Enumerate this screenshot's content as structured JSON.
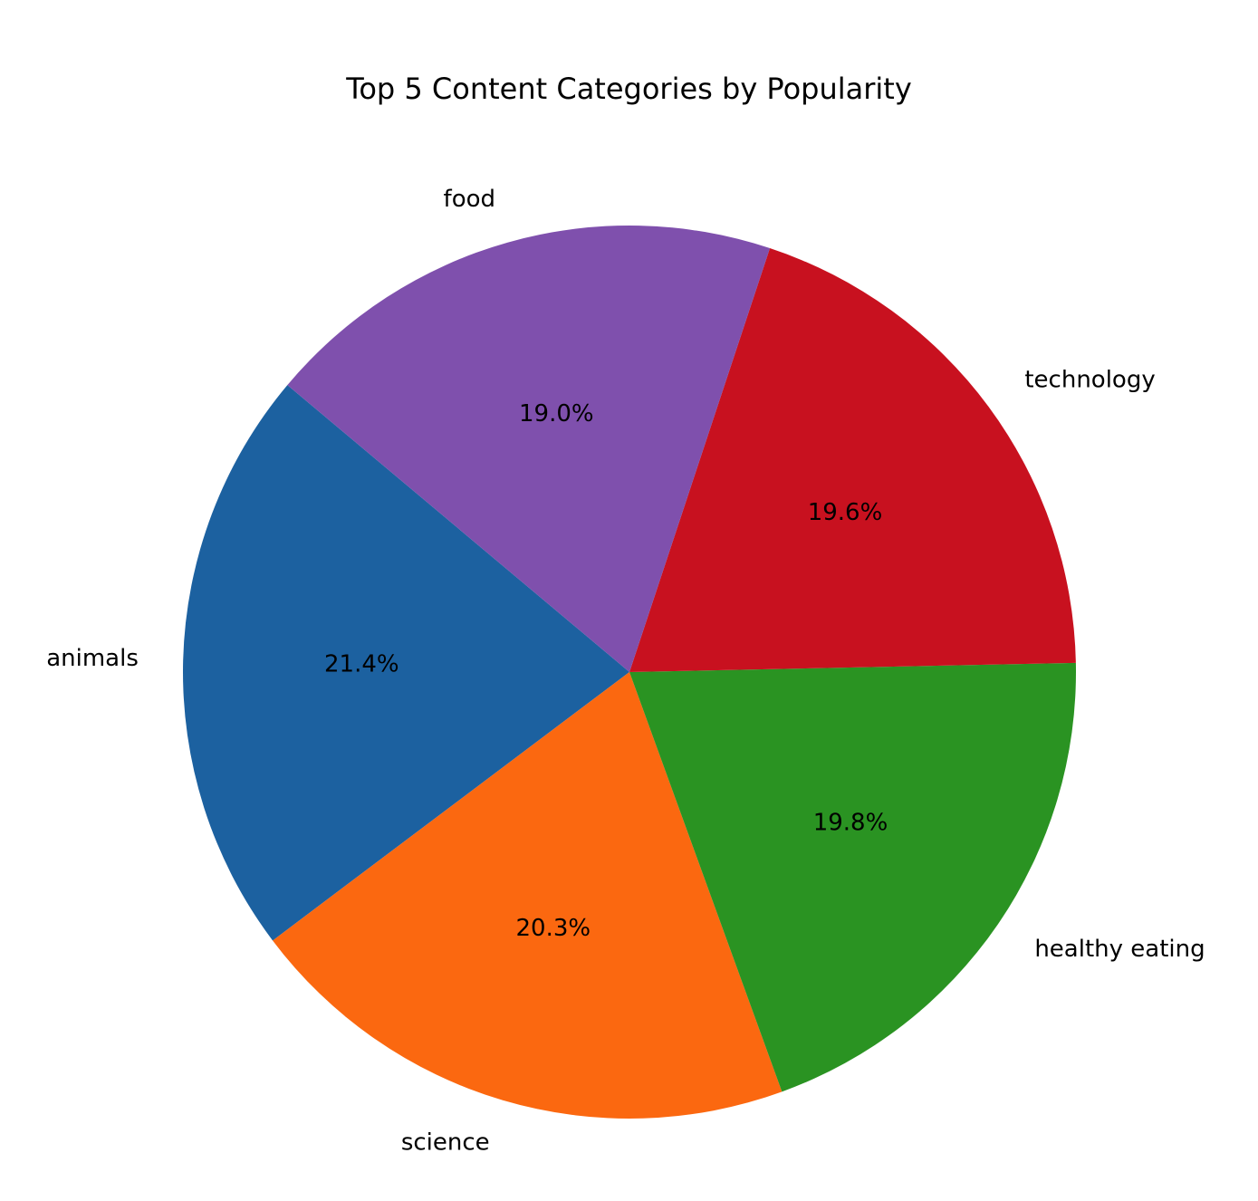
{
  "chart_data": {
    "type": "pie",
    "title": "Top 5 Content Categories by Popularity",
    "start_angle_deg": 140,
    "direction": "counterclockwise",
    "slices": [
      {
        "label": "animals",
        "value": 21.4,
        "pct_label": "21.4%",
        "color": "#1c61a0"
      },
      {
        "label": "science",
        "value": 20.3,
        "pct_label": "20.3%",
        "color": "#fb6810"
      },
      {
        "label": "healthy eating",
        "value": 19.8,
        "pct_label": "19.8%",
        "color": "#2a9322"
      },
      {
        "label": "technology",
        "value": 19.6,
        "pct_label": "19.6%",
        "color": "#c8111f"
      },
      {
        "label": "food",
        "value": 19.0,
        "pct_label": "19.0%",
        "color": "#7f50ad"
      }
    ]
  }
}
